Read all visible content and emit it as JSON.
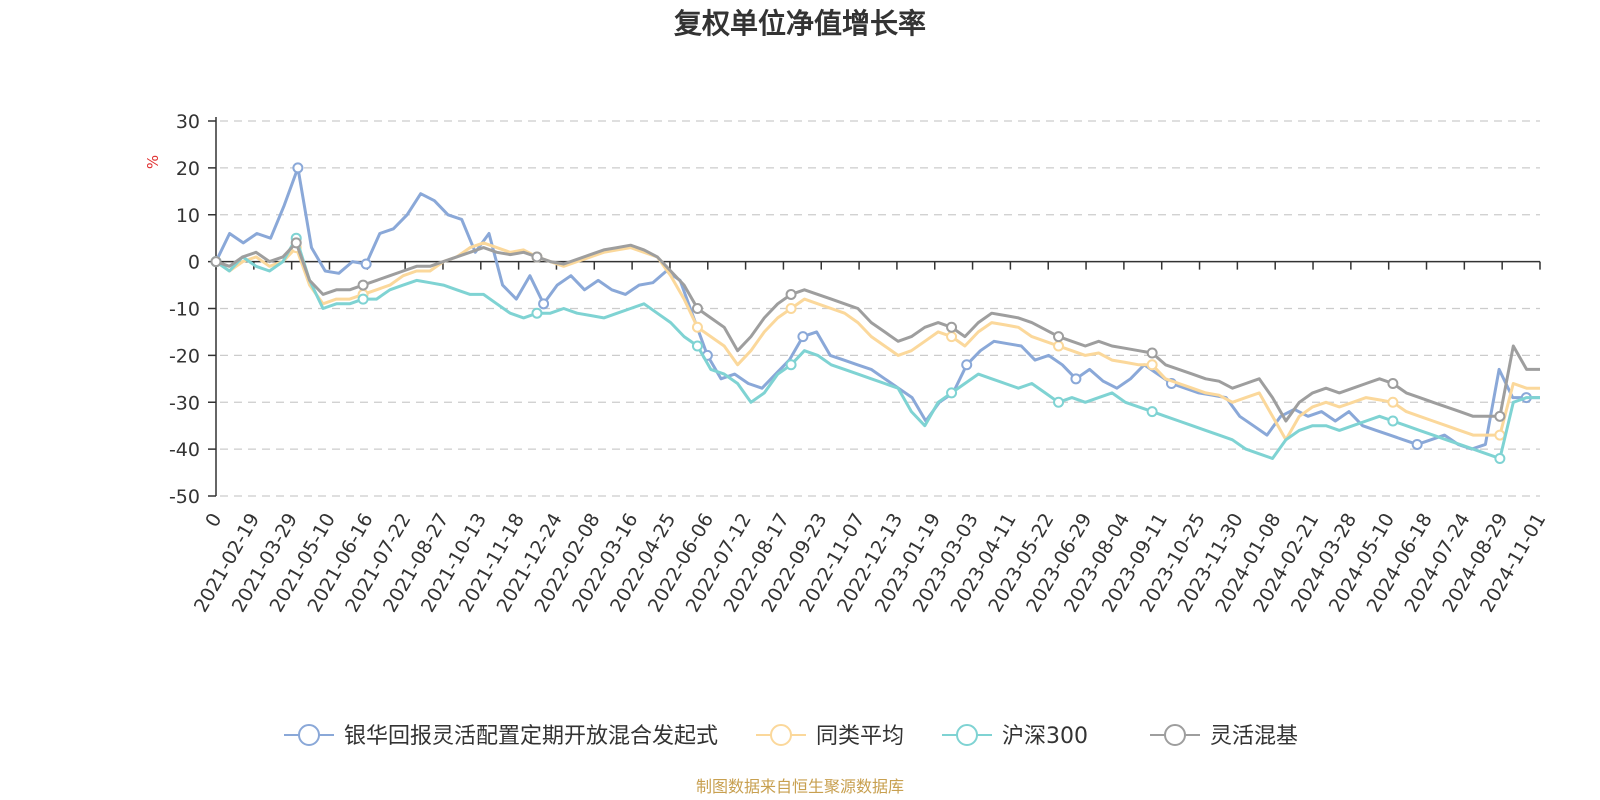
{
  "chart_data": {
    "type": "line",
    "title": "复权单位净值增长率",
    "y_unit": "%",
    "ylim": [
      -50,
      30
    ],
    "y_ticks": [
      30,
      20,
      10,
      0,
      -10,
      -20,
      -30,
      -40,
      -50
    ],
    "y_tick_labels": [
      "30",
      "20",
      "10",
      "0",
      "-10",
      "-20",
      "-30",
      "-40",
      "-50"
    ],
    "grid": "dashed-horizontal",
    "x_tick_labels": [
      "0",
      "2021-02-19",
      "2021-03-29",
      "2021-05-10",
      "2021-06-16",
      "2021-07-22",
      "2021-08-27",
      "2021-10-13",
      "2021-11-18",
      "2021-12-24",
      "2022-02-08",
      "2022-03-16",
      "2022-04-25",
      "2022-06-06",
      "2022-07-12",
      "2022-08-17",
      "2022-09-23",
      "2022-11-07",
      "2022-12-13",
      "2023-01-19",
      "2023-03-03",
      "2023-04-11",
      "2023-05-22",
      "2023-06-29",
      "2023-08-04",
      "2023-09-11",
      "2023-10-25",
      "2023-11-30",
      "2024-01-08",
      "2024-02-21",
      "2024-03-28",
      "2024-05-10",
      "2024-06-18",
      "2024-07-24",
      "2024-08-29",
      "2024-11-01"
    ],
    "legend_position": "bottom",
    "series": [
      {
        "name": "银华回报灵活配置定期开放混合发起式",
        "color": "#8aa8d8",
        "values": [
          0,
          6,
          4,
          6,
          5,
          12,
          20,
          3,
          -2,
          -2.5,
          0,
          -0.5,
          6,
          7,
          10,
          14.5,
          13,
          10,
          9,
          2,
          6,
          -5,
          -8,
          -3,
          -9,
          -5,
          -3,
          -6,
          -4,
          -6,
          -7,
          -5,
          -4.5,
          -2,
          -4,
          -12,
          -20,
          -25,
          -24,
          -26,
          -27,
          -24,
          -21,
          -16,
          -15,
          -20,
          -21,
          -22,
          -23,
          -25,
          -27,
          -29,
          -34,
          -30,
          -28,
          -22,
          -19,
          -17,
          -17.5,
          -18,
          -21,
          -20,
          -22,
          -25,
          -23,
          -25.5,
          -27,
          -25,
          -22,
          -24,
          -26,
          -27,
          -28,
          -28.5,
          -29,
          -33,
          -35,
          -37,
          -33,
          -31.5,
          -33,
          -32,
          -34,
          -32,
          -35,
          -36,
          -37,
          -38,
          -39,
          -38,
          -37,
          -39,
          -40,
          -39,
          -23,
          -29,
          -29,
          -29
        ],
        "marker_indices": [
          0,
          6,
          11,
          24,
          36,
          43,
          55,
          63,
          70,
          88,
          96
        ]
      },
      {
        "name": "同类平均",
        "color": "#fbd89b",
        "values": [
          0,
          -2,
          0,
          1,
          -1,
          0,
          3,
          -5,
          -9,
          -8,
          -8,
          -7,
          -6,
          -5,
          -3,
          -2,
          -2,
          0,
          1,
          3,
          4,
          3,
          2,
          2.5,
          1,
          0,
          -1,
          0,
          1,
          2,
          2.5,
          3,
          2,
          1,
          -3,
          -8,
          -14,
          -16,
          -18,
          -22,
          -19,
          -15,
          -12,
          -10,
          -8,
          -9,
          -10,
          -11,
          -13,
          -16,
          -18,
          -20,
          -19,
          -17,
          -15,
          -16,
          -18,
          -15,
          -13,
          -13.5,
          -14,
          -16,
          -17,
          -18,
          -19,
          -20,
          -19.5,
          -21,
          -21.5,
          -22,
          -22,
          -25,
          -26,
          -27,
          -28,
          -28.5,
          -30,
          -29,
          -28,
          -33,
          -38,
          -33,
          -31,
          -30,
          -31,
          -30,
          -29,
          -29.5,
          -30,
          -32,
          -33,
          -34,
          -35,
          -36,
          -37,
          -37,
          -37,
          -26,
          -27,
          -27
        ],
        "marker_indices": [
          0,
          6,
          11,
          24,
          36,
          43,
          55,
          63,
          70,
          88,
          96
        ]
      },
      {
        "name": "沪深300",
        "color": "#7fd3d3",
        "values": [
          0,
          -2,
          1,
          -1,
          -2,
          0,
          5,
          -4,
          -10,
          -9,
          -9,
          -8,
          -8,
          -6,
          -5,
          -4,
          -4.5,
          -5,
          -6,
          -7,
          -7,
          -9,
          -11,
          -12,
          -11,
          -11,
          -10,
          -11,
          -11.5,
          -12,
          -11,
          -10,
          -9,
          -11,
          -13,
          -16,
          -18,
          -23,
          -24,
          -26,
          -30,
          -28,
          -24,
          -22,
          -19,
          -20,
          -22,
          -23,
          -24,
          -25,
          -26,
          -27,
          -32,
          -35,
          -30,
          -28,
          -26,
          -24,
          -25,
          -26,
          -27,
          -26,
          -28,
          -30,
          -29,
          -30,
          -29,
          -28,
          -30,
          -31,
          -32,
          -33,
          -34,
          -35,
          -36,
          -37,
          -38,
          -40,
          -41,
          -42,
          -38,
          -36,
          -35,
          -35,
          -36,
          -35,
          -34,
          -33,
          -34,
          -35,
          -36,
          -37,
          -38,
          -39,
          -40,
          -41,
          -42,
          -30,
          -29,
          -29
        ],
        "marker_indices": [
          0,
          6,
          11,
          24,
          36,
          43,
          55,
          63,
          70,
          88,
          96
        ]
      },
      {
        "name": "灵活混基",
        "color": "#9e9e9e",
        "values": [
          0,
          -1,
          1,
          2,
          0,
          1,
          4,
          -4,
          -7,
          -6,
          -6,
          -5,
          -4,
          -3,
          -2,
          -1,
          -1,
          0,
          1,
          2,
          3,
          2,
          1.5,
          2,
          1,
          0,
          -0.5,
          0.5,
          1.5,
          2.5,
          3,
          3.5,
          2.5,
          1,
          -2,
          -5,
          -10,
          -12,
          -14,
          -19,
          -16,
          -12,
          -9,
          -7,
          -6,
          -7,
          -8,
          -9,
          -10,
          -13,
          -15,
          -17,
          -16,
          -14,
          -13,
          -14,
          -16,
          -13,
          -11,
          -11.5,
          -12,
          -13,
          -14.5,
          -16,
          -17,
          -18,
          -17,
          -18,
          -18.5,
          -19,
          -19.5,
          -22,
          -23,
          -24,
          -25,
          -25.5,
          -27,
          -26,
          -25,
          -29,
          -34,
          -30,
          -28,
          -27,
          -28,
          -27,
          -26,
          -25,
          -26,
          -28,
          -29,
          -30,
          -31,
          -32,
          -33,
          -33,
          -33,
          -18,
          -23,
          -23
        ],
        "marker_indices": [
          0,
          6,
          11,
          24,
          36,
          43,
          55,
          63,
          70,
          88,
          96
        ]
      }
    ],
    "source": "制图数据来自恒生聚源数据库"
  },
  "colors": {
    "unit_label": "#e03030",
    "source_text": "#c8a050",
    "axis": "#333333",
    "grid": "#cccccc"
  }
}
